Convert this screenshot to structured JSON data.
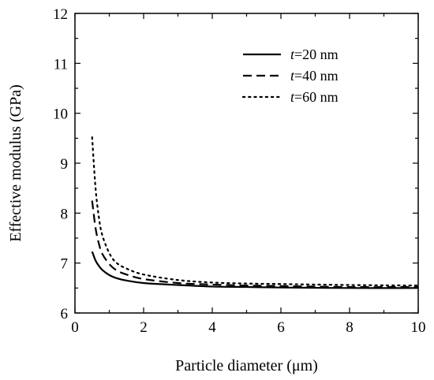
{
  "chart_data": {
    "type": "line",
    "title": "",
    "xlabel": "Particle diameter (μm)",
    "ylabel": "Effective modulus (GPa)",
    "xlim": [
      0,
      10
    ],
    "ylim": [
      6,
      12
    ],
    "x_ticks": [
      0,
      2,
      4,
      6,
      8,
      10
    ],
    "y_ticks": [
      6,
      7,
      8,
      9,
      10,
      11,
      12
    ],
    "grid": false,
    "legend_position": "top-right",
    "series": [
      {
        "name_italic": "t",
        "name_rest": "=20 nm",
        "style": "solid",
        "color": "#000000",
        "x": [
          0.5,
          0.6,
          0.7,
          0.8,
          1.0,
          1.2,
          1.5,
          2.0,
          3.0,
          4.0,
          5.0,
          6.0,
          8.0,
          10.0
        ],
        "values": [
          7.23,
          7.05,
          6.94,
          6.86,
          6.76,
          6.7,
          6.65,
          6.6,
          6.56,
          6.53,
          6.52,
          6.51,
          6.5,
          6.5
        ]
      },
      {
        "name_italic": "t",
        "name_rest": "=40 nm",
        "style": "dashed",
        "color": "#000000",
        "x": [
          0.5,
          0.6,
          0.7,
          0.8,
          1.0,
          1.2,
          1.5,
          2.0,
          3.0,
          4.0,
          5.0,
          6.0,
          8.0,
          10.0
        ],
        "values": [
          8.25,
          7.7,
          7.38,
          7.18,
          6.98,
          6.86,
          6.77,
          6.68,
          6.6,
          6.57,
          6.55,
          6.54,
          6.52,
          6.52
        ]
      },
      {
        "name_italic": "t",
        "name_rest": "=60 nm",
        "style": "dotted",
        "color": "#000000",
        "x": [
          0.5,
          0.6,
          0.7,
          0.8,
          1.0,
          1.2,
          1.5,
          2.0,
          3.0,
          4.0,
          5.0,
          6.0,
          8.0,
          10.0
        ],
        "values": [
          9.52,
          8.5,
          7.9,
          7.55,
          7.2,
          7.01,
          6.89,
          6.77,
          6.66,
          6.61,
          6.59,
          6.58,
          6.56,
          6.55
        ]
      }
    ]
  }
}
